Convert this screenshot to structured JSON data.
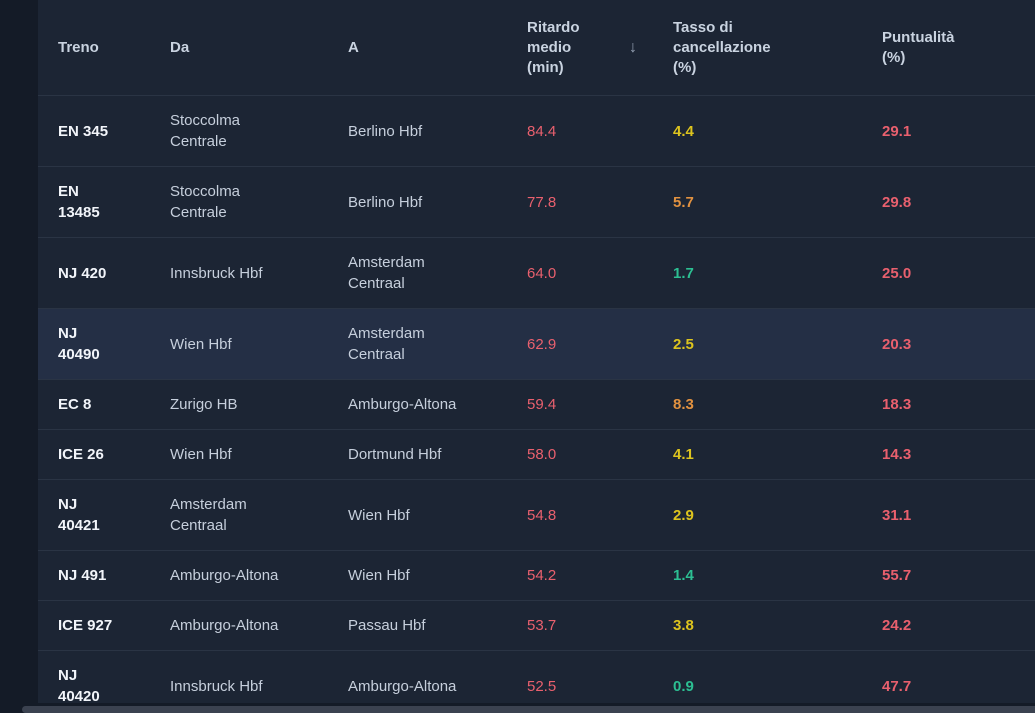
{
  "table": {
    "sort_icon": "↓",
    "columns": [
      {
        "label": "Treno"
      },
      {
        "label": "Da"
      },
      {
        "label": "A"
      },
      {
        "label": "Ritardo medio (min)",
        "sorted": "desc"
      },
      {
        "label": "Tasso di cancellazione (%)"
      },
      {
        "label": "Puntualità (%)"
      }
    ],
    "rows": [
      {
        "treno": "EN 345",
        "da": "Stoccolma Centrale",
        "a": "Berlino Hbf",
        "ritardo": "84.4",
        "ritardo_color": "red",
        "tasso": "4.4",
        "tasso_color": "yellow",
        "puntualita": "29.1",
        "puntualita_color": "red",
        "highlighted": false
      },
      {
        "treno": "EN 13485",
        "da": "Stoccolma Centrale",
        "a": "Berlino Hbf",
        "ritardo": "77.8",
        "ritardo_color": "red",
        "tasso": "5.7",
        "tasso_color": "orange",
        "puntualita": "29.8",
        "puntualita_color": "red",
        "highlighted": false
      },
      {
        "treno": "NJ 420",
        "da": "Innsbruck Hbf",
        "a": "Amsterdam Centraal",
        "ritardo": "64.0",
        "ritardo_color": "red",
        "tasso": "1.7",
        "tasso_color": "green",
        "puntualita": "25.0",
        "puntualita_color": "red",
        "highlighted": false
      },
      {
        "treno": "NJ 40490",
        "da": "Wien Hbf",
        "a": "Amsterdam Centraal",
        "ritardo": "62.9",
        "ritardo_color": "red",
        "tasso": "2.5",
        "tasso_color": "yellow",
        "puntualita": "20.3",
        "puntualita_color": "red",
        "highlighted": true
      },
      {
        "treno": "EC 8",
        "da": "Zurigo HB",
        "a": "Amburgo-Altona",
        "ritardo": "59.4",
        "ritardo_color": "red",
        "tasso": "8.3",
        "tasso_color": "orange",
        "puntualita": "18.3",
        "puntualita_color": "red",
        "highlighted": false
      },
      {
        "treno": "ICE 26",
        "da": "Wien Hbf",
        "a": "Dortmund Hbf",
        "ritardo": "58.0",
        "ritardo_color": "red",
        "tasso": "4.1",
        "tasso_color": "yellow",
        "puntualita": "14.3",
        "puntualita_color": "red",
        "highlighted": false
      },
      {
        "treno": "NJ 40421",
        "da": "Amsterdam Centraal",
        "a": "Wien Hbf",
        "ritardo": "54.8",
        "ritardo_color": "red",
        "tasso": "2.9",
        "tasso_color": "yellow",
        "puntualita": "31.1",
        "puntualita_color": "red",
        "highlighted": false
      },
      {
        "treno": "NJ 491",
        "da": "Amburgo-Altona",
        "a": "Wien Hbf",
        "ritardo": "54.2",
        "ritardo_color": "red",
        "tasso": "1.4",
        "tasso_color": "green",
        "puntualita": "55.7",
        "puntualita_color": "red",
        "highlighted": false
      },
      {
        "treno": "ICE 927",
        "da": "Amburgo-Altona",
        "a": "Passau Hbf",
        "ritardo": "53.7",
        "ritardo_color": "red",
        "tasso": "3.8",
        "tasso_color": "yellow",
        "puntualita": "24.2",
        "puntualita_color": "red",
        "highlighted": false
      },
      {
        "treno": "NJ 40420",
        "da": "Innsbruck Hbf",
        "a": "Amburgo-Altona",
        "ritardo": "52.5",
        "ritardo_color": "red",
        "tasso": "0.9",
        "tasso_color": "green",
        "puntualita": "47.7",
        "puntualita_color": "red",
        "highlighted": false
      }
    ]
  },
  "colors": {
    "red": "#e9606e",
    "yellow": "#ddc41e",
    "orange": "#e29240",
    "green": "#2cbf92"
  }
}
